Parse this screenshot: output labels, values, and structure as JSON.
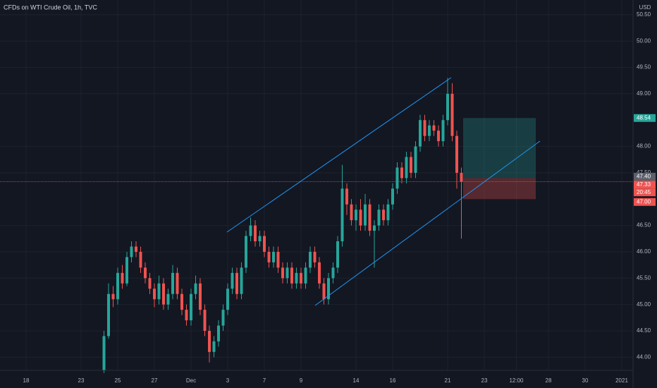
{
  "chart_data": {
    "type": "candlestick",
    "title": "CFDs on WTI Crude Oil, 1h, TVC",
    "currency": "USD",
    "categories": [
      "18",
      null,
      null,
      null,
      null,
      null,
      null,
      null,
      null,
      null,
      null,
      null,
      "23",
      null,
      null,
      null,
      null,
      null,
      null,
      null,
      "25",
      null,
      null,
      null,
      null,
      null,
      null,
      null,
      "27",
      null,
      null,
      null,
      null,
      null,
      null,
      null,
      "Dec",
      null,
      null,
      null,
      null,
      null,
      null,
      null,
      "3",
      null,
      null,
      null,
      null,
      null,
      null,
      null,
      "7",
      null,
      null,
      null,
      null,
      null,
      null,
      null,
      "9",
      null,
      null,
      null,
      null,
      null,
      null,
      null,
      null,
      null,
      null,
      null,
      "14",
      null,
      null,
      null,
      null,
      null,
      null,
      null,
      "16",
      null,
      null,
      null,
      null,
      null,
      null,
      null,
      null,
      null,
      null,
      null,
      "21",
      null,
      null,
      null,
      null,
      null,
      null,
      null,
      "23",
      null,
      null,
      null,
      null,
      null,
      null,
      "12:00",
      null,
      null,
      null,
      null,
      null,
      null,
      "28",
      null,
      null,
      null,
      null,
      null,
      null,
      null,
      "30",
      null,
      null,
      null,
      null,
      null,
      null,
      null,
      "2021",
      null,
      null
    ],
    "open": [
      null,
      null,
      null,
      null,
      null,
      null,
      null,
      null,
      null,
      null,
      null,
      null,
      null,
      null,
      null,
      null,
      null,
      43.75,
      44.4,
      45.2,
      45.1,
      45.6,
      45.4,
      45.9,
      46.1,
      46.0,
      45.7,
      45.5,
      45.3,
      45.1,
      45.4,
      45.0,
      45.2,
      45.6,
      45.2,
      44.9,
      44.7,
      45.2,
      45.4,
      44.9,
      44.5,
      44.1,
      44.3,
      44.6,
      44.9,
      45.3,
      45.6,
      45.2,
      45.7,
      46.3,
      46.5,
      46.2,
      46.3,
      46.0,
      45.8,
      46.0,
      45.7,
      45.5,
      45.7,
      45.4,
      45.6,
      45.4,
      45.7,
      46.0,
      45.8,
      45.4,
      45.1,
      45.5,
      45.7,
      46.2,
      47.2,
      46.9,
      46.6,
      46.8,
      46.5,
      46.9,
      46.4,
      46.5,
      46.8,
      46.6,
      46.9,
      47.2,
      47.6,
      47.4,
      47.8,
      47.5,
      48.0,
      48.5,
      48.2,
      48.4,
      48.3,
      48.1,
      48.5,
      49.0,
      48.2,
      47.5,
      null,
      null,
      null,
      null,
      null,
      null,
      null,
      null,
      null,
      null,
      null,
      null,
      null,
      null,
      null,
      null,
      null,
      null,
      null,
      null,
      null,
      null,
      null,
      null,
      null,
      null,
      null,
      null,
      null,
      null,
      null,
      null,
      null,
      null,
      null,
      null,
      null
    ],
    "high": [
      null,
      null,
      null,
      null,
      null,
      null,
      null,
      null,
      null,
      null,
      null,
      null,
      null,
      null,
      null,
      null,
      null,
      44.5,
      45.4,
      45.35,
      45.7,
      45.75,
      46.0,
      46.2,
      46.2,
      46.1,
      45.8,
      45.6,
      45.4,
      45.55,
      45.5,
      45.3,
      45.75,
      45.7,
      45.3,
      45.0,
      45.3,
      45.55,
      45.5,
      45.0,
      44.6,
      44.4,
      44.7,
      45.0,
      45.4,
      45.7,
      45.7,
      45.8,
      46.4,
      46.65,
      46.6,
      46.4,
      46.4,
      46.1,
      46.1,
      46.1,
      45.8,
      45.8,
      45.8,
      45.7,
      45.7,
      45.8,
      46.1,
      46.1,
      45.9,
      45.5,
      45.6,
      45.8,
      46.3,
      47.65,
      47.3,
      47.0,
      46.9,
      47.0,
      47.1,
      47.0,
      46.6,
      46.9,
      46.9,
      47.0,
      47.3,
      47.7,
      47.7,
      47.9,
      47.9,
      48.1,
      48.6,
      48.6,
      48.5,
      48.5,
      48.4,
      48.6,
      49.3,
      49.2,
      48.3,
      47.6,
      null,
      null,
      null,
      null,
      null,
      null,
      null,
      null,
      null,
      null,
      null,
      null,
      null,
      null,
      null,
      null,
      null,
      null,
      null,
      null,
      null,
      null,
      null,
      null,
      null,
      null,
      null,
      null,
      null,
      null,
      null,
      null,
      null,
      null,
      null,
      null,
      null
    ],
    "low": [
      null,
      null,
      null,
      null,
      null,
      null,
      null,
      null,
      null,
      null,
      null,
      null,
      null,
      null,
      null,
      null,
      null,
      43.7,
      44.35,
      44.95,
      45.0,
      45.3,
      45.35,
      45.8,
      45.9,
      45.6,
      45.4,
      45.2,
      44.95,
      45.0,
      44.9,
      44.9,
      45.1,
      45.1,
      44.8,
      44.6,
      44.6,
      45.1,
      44.8,
      44.4,
      43.9,
      44.0,
      44.2,
      44.5,
      44.8,
      45.2,
      45.1,
      45.1,
      45.6,
      46.2,
      46.1,
      46.1,
      45.9,
      45.7,
      45.7,
      45.6,
      45.4,
      45.4,
      45.3,
      45.3,
      45.3,
      45.3,
      45.6,
      45.7,
      45.3,
      45.0,
      45.0,
      45.4,
      45.6,
      46.1,
      46.7,
      46.5,
      46.4,
      46.4,
      46.4,
      46.3,
      45.7,
      46.4,
      46.5,
      46.5,
      46.8,
      47.1,
      47.3,
      47.3,
      47.4,
      47.4,
      47.9,
      48.1,
      48.1,
      48.2,
      48.0,
      48.0,
      48.4,
      48.1,
      47.2,
      46.25,
      null,
      null,
      null,
      null,
      null,
      null,
      null,
      null,
      null,
      null,
      null,
      null,
      null,
      null,
      null,
      null,
      null,
      null,
      null,
      null,
      null,
      null,
      null,
      null,
      null,
      null,
      null,
      null,
      null,
      null,
      null,
      null,
      null,
      null,
      null,
      null,
      null
    ],
    "close": [
      null,
      null,
      null,
      null,
      null,
      null,
      null,
      null,
      null,
      null,
      null,
      null,
      null,
      null,
      null,
      null,
      null,
      44.4,
      45.2,
      45.1,
      45.6,
      45.4,
      45.9,
      46.1,
      46.0,
      45.7,
      45.5,
      45.3,
      45.1,
      45.4,
      45.0,
      45.2,
      45.6,
      45.2,
      44.9,
      44.7,
      45.2,
      45.4,
      44.9,
      44.5,
      44.1,
      44.3,
      44.6,
      44.9,
      45.3,
      45.6,
      45.2,
      45.7,
      46.3,
      46.5,
      46.2,
      46.3,
      46.0,
      45.8,
      46.0,
      45.7,
      45.5,
      45.7,
      45.4,
      45.6,
      45.4,
      45.7,
      46.0,
      45.8,
      45.4,
      45.1,
      45.5,
      45.7,
      46.2,
      47.2,
      46.9,
      46.6,
      46.8,
      46.5,
      46.9,
      46.4,
      46.5,
      46.8,
      46.6,
      46.9,
      47.2,
      47.6,
      47.4,
      47.8,
      47.5,
      48.0,
      48.5,
      48.2,
      48.4,
      48.3,
      48.1,
      48.5,
      49.0,
      48.2,
      47.5,
      47.33,
      null,
      null,
      null,
      null,
      null,
      null,
      null,
      null,
      null,
      null,
      null,
      null,
      null,
      null,
      null,
      null,
      null,
      null,
      null,
      null,
      null,
      null,
      null,
      null,
      null,
      null,
      null,
      null,
      null,
      null,
      null,
      null,
      null,
      null,
      null,
      null,
      null
    ],
    "up_color": "#26a69a",
    "down_color": "#ef5350",
    "ylim": [
      43.75,
      50.78
    ],
    "yticks": [
      {
        "value": 44,
        "label": "44.00"
      },
      {
        "value": 44.5,
        "label": "44.50"
      },
      {
        "value": 45,
        "label": "45.00"
      },
      {
        "value": 45.5,
        "label": "45.50"
      },
      {
        "value": 46,
        "label": "46.00"
      },
      {
        "value": 46.5,
        "label": "46.50"
      },
      {
        "value": 47.5,
        "label": "47.50"
      },
      {
        "value": 48,
        "label": "48.00"
      },
      {
        "value": 49,
        "label": "49.00"
      },
      {
        "value": 49.5,
        "label": "49.50"
      },
      {
        "value": 50,
        "label": "50.00"
      },
      {
        "value": 50.5,
        "label": "50.50"
      }
    ],
    "grid": true,
    "last_price": 47.33,
    "countdown": "20:45",
    "position": {
      "target": {
        "value": 48.54,
        "label": "48.54"
      },
      "entry": {
        "value": 47.4,
        "label": "47.40"
      },
      "stop": {
        "value": 47,
        "label": "47.00"
      }
    }
  }
}
